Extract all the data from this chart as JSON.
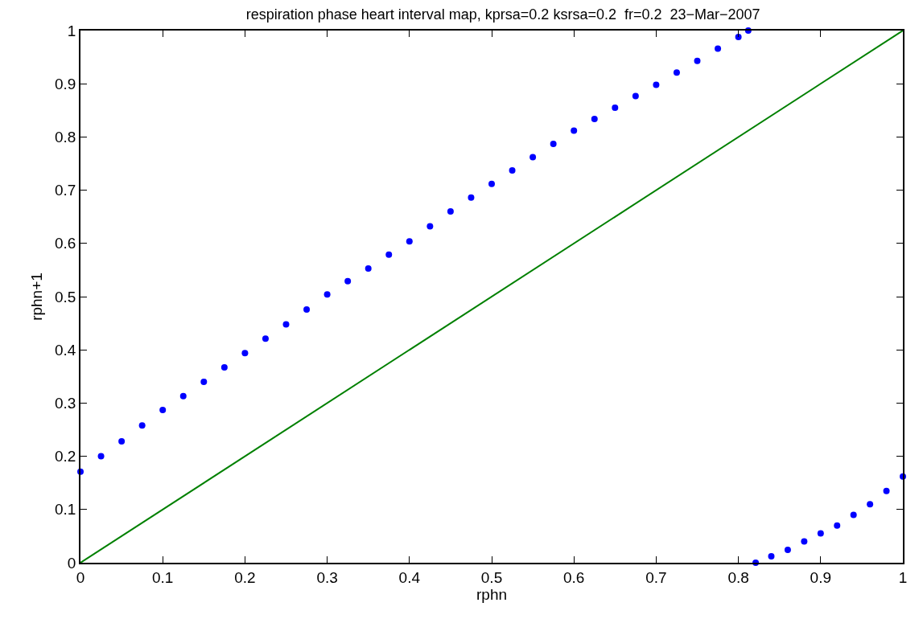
{
  "chart_data": {
    "type": "scatter",
    "title": "respiration phase heart interval map, kprsa=0.2 ksrsa=0.2  fr=0.2  23−Mar−2007",
    "xlabel": "rphn",
    "ylabel": "rphn+1",
    "xlim": [
      0,
      1
    ],
    "ylim": [
      0,
      1
    ],
    "xticks": [
      0,
      0.1,
      0.2,
      0.3,
      0.4,
      0.5,
      0.6,
      0.7,
      0.8,
      0.9,
      1
    ],
    "yticks": [
      0,
      0.1,
      0.2,
      0.3,
      0.4,
      0.5,
      0.6,
      0.7,
      0.8,
      0.9,
      1
    ],
    "grid": false,
    "marker": "circle",
    "series": [
      {
        "color": "#0000ff",
        "x": [
          0,
          0.025,
          0.05,
          0.075,
          0.1,
          0.125,
          0.15,
          0.175,
          0.2,
          0.225,
          0.25,
          0.275,
          0.3,
          0.325,
          0.35,
          0.375,
          0.4,
          0.425,
          0.45,
          0.475,
          0.5,
          0.525,
          0.55,
          0.575,
          0.6,
          0.625,
          0.65,
          0.675,
          0.7,
          0.725,
          0.75,
          0.775,
          0.8,
          0.812
        ],
        "values": [
          0.171,
          0.2,
          0.228,
          0.258,
          0.287,
          0.313,
          0.34,
          0.367,
          0.394,
          0.421,
          0.448,
          0.476,
          0.504,
          0.529,
          0.553,
          0.579,
          0.604,
          0.632,
          0.66,
          0.686,
          0.712,
          0.737,
          0.762,
          0.787,
          0.812,
          0.834,
          0.855,
          0.877,
          0.898,
          0.921,
          0.943,
          0.966,
          0.988,
          1.0
        ]
      },
      {
        "color": "#0000ff",
        "x": [
          0.821,
          0.84,
          0.86,
          0.88,
          0.9,
          0.92,
          0.94,
          0.96,
          0.98,
          1.0
        ],
        "values": [
          0,
          0.012,
          0.024,
          0.04,
          0.055,
          0.07,
          0.09,
          0.11,
          0.135,
          0.162
        ]
      },
      {
        "type": "line",
        "color": "#008000",
        "marker": "none",
        "line_style": "solid",
        "x": [
          0,
          1
        ],
        "values": [
          0,
          1
        ]
      }
    ]
  }
}
